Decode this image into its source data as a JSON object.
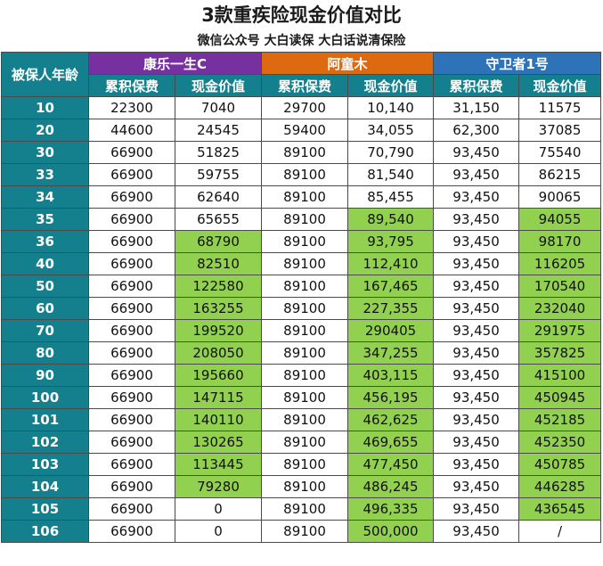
{
  "title": "3款重疾险现金价值对比",
  "subtitle": "微信公众号 大白读保 大白话说清保险",
  "header": {
    "age": "被保人年龄",
    "products": [
      "康乐一生C",
      "阿童木",
      "守卫者1号"
    ],
    "cols": [
      "累积保费",
      "现金价值"
    ]
  },
  "colors": {
    "age": "#15808d",
    "p1": "#7730a0",
    "p2": "#dd6a10",
    "p3": "#2e73b8",
    "highlight": "#92d050"
  },
  "rows": [
    {
      "age": "10",
      "v": [
        "22300",
        "7040",
        "29700",
        "10,140",
        "31,150",
        "11575"
      ],
      "hl": [
        0,
        0,
        0,
        0,
        0,
        0
      ]
    },
    {
      "age": "20",
      "v": [
        "44600",
        "24545",
        "59400",
        "34,055",
        "62,300",
        "37085"
      ],
      "hl": [
        0,
        0,
        0,
        0,
        0,
        0
      ]
    },
    {
      "age": "30",
      "v": [
        "66900",
        "51825",
        "89100",
        "70,790",
        "93,450",
        "75540"
      ],
      "hl": [
        0,
        0,
        0,
        0,
        0,
        0
      ]
    },
    {
      "age": "33",
      "v": [
        "66900",
        "59755",
        "89100",
        "81,540",
        "93,450",
        "86215"
      ],
      "hl": [
        0,
        0,
        0,
        0,
        0,
        0
      ]
    },
    {
      "age": "34",
      "v": [
        "66900",
        "62640",
        "89100",
        "85,455",
        "93,450",
        "90065"
      ],
      "hl": [
        0,
        0,
        0,
        0,
        0,
        0
      ]
    },
    {
      "age": "35",
      "v": [
        "66900",
        "65655",
        "89100",
        "89,540",
        "93,450",
        "94055"
      ],
      "hl": [
        0,
        0,
        0,
        1,
        0,
        1
      ]
    },
    {
      "age": "36",
      "v": [
        "66900",
        "68790",
        "89100",
        "93,795",
        "93,450",
        "98170"
      ],
      "hl": [
        0,
        1,
        0,
        1,
        0,
        1
      ]
    },
    {
      "age": "40",
      "v": [
        "66900",
        "82510",
        "89100",
        "112,410",
        "93,450",
        "116205"
      ],
      "hl": [
        0,
        1,
        0,
        1,
        0,
        1
      ]
    },
    {
      "age": "50",
      "v": [
        "66900",
        "122580",
        "89100",
        "167,465",
        "93,450",
        "170540"
      ],
      "hl": [
        0,
        1,
        0,
        1,
        0,
        1
      ]
    },
    {
      "age": "60",
      "v": [
        "66900",
        "163255",
        "89100",
        "227,355",
        "93,450",
        "232040"
      ],
      "hl": [
        0,
        1,
        0,
        1,
        0,
        1
      ]
    },
    {
      "age": "70",
      "v": [
        "66900",
        "199520",
        "89100",
        "290405",
        "93,450",
        "291975"
      ],
      "hl": [
        0,
        1,
        0,
        1,
        0,
        1
      ]
    },
    {
      "age": "80",
      "v": [
        "66900",
        "208050",
        "89100",
        "347,255",
        "93,450",
        "357825"
      ],
      "hl": [
        0,
        1,
        0,
        1,
        0,
        1
      ]
    },
    {
      "age": "90",
      "v": [
        "66900",
        "195660",
        "89100",
        "403,115",
        "93,450",
        "415100"
      ],
      "hl": [
        0,
        1,
        0,
        1,
        0,
        1
      ]
    },
    {
      "age": "100",
      "v": [
        "66900",
        "147115",
        "89100",
        "456,195",
        "93,450",
        "450945"
      ],
      "hl": [
        0,
        1,
        0,
        1,
        0,
        1
      ]
    },
    {
      "age": "101",
      "v": [
        "66900",
        "140110",
        "89100",
        "462,625",
        "93,450",
        "452185"
      ],
      "hl": [
        0,
        1,
        0,
        1,
        0,
        1
      ]
    },
    {
      "age": "102",
      "v": [
        "66900",
        "130265",
        "89100",
        "469,655",
        "93,450",
        "452350"
      ],
      "hl": [
        0,
        1,
        0,
        1,
        0,
        1
      ]
    },
    {
      "age": "103",
      "v": [
        "66900",
        "113445",
        "89100",
        "477,450",
        "93,450",
        "450785"
      ],
      "hl": [
        0,
        1,
        0,
        1,
        0,
        1
      ]
    },
    {
      "age": "104",
      "v": [
        "66900",
        "79280",
        "89100",
        "486,245",
        "93,450",
        "446285"
      ],
      "hl": [
        0,
        1,
        0,
        1,
        0,
        1
      ]
    },
    {
      "age": "105",
      "v": [
        "66900",
        "0",
        "89100",
        "496,335",
        "93,450",
        "436545"
      ],
      "hl": [
        0,
        0,
        0,
        1,
        0,
        1
      ]
    },
    {
      "age": "106",
      "v": [
        "66900",
        "0",
        "89100",
        "500,000",
        "93,450",
        "/"
      ],
      "hl": [
        0,
        0,
        0,
        1,
        0,
        0
      ]
    }
  ]
}
